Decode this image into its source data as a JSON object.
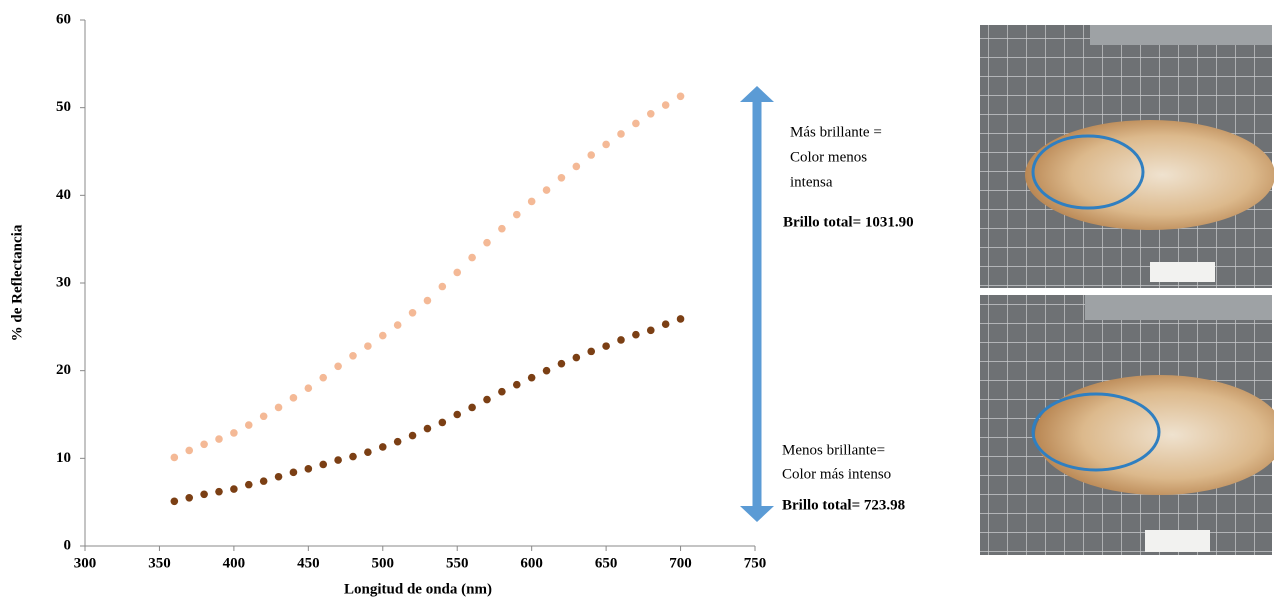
{
  "chart_data": {
    "type": "scatter",
    "x_label": "Longitud de onda (nm)",
    "y_label": "% de Reflectancia",
    "x": [
      360,
      370,
      380,
      390,
      400,
      410,
      420,
      430,
      440,
      450,
      460,
      470,
      480,
      490,
      500,
      510,
      520,
      530,
      540,
      550,
      560,
      570,
      580,
      590,
      600,
      610,
      620,
      630,
      640,
      650,
      660,
      670,
      680,
      690,
      700
    ],
    "series": [
      {
        "color": "#f4b996",
        "values": [
          10.1,
          10.9,
          11.6,
          12.2,
          12.9,
          13.8,
          14.8,
          15.8,
          16.9,
          18.0,
          19.2,
          20.5,
          21.7,
          22.8,
          24.0,
          25.2,
          26.6,
          28.0,
          29.6,
          31.2,
          32.9,
          34.6,
          36.2,
          37.8,
          39.3,
          40.6,
          42.0,
          43.3,
          44.6,
          45.8,
          47.0,
          48.2,
          49.3,
          50.3,
          51.3
        ]
      },
      {
        "color": "#7b3f14",
        "values": [
          5.1,
          5.5,
          5.9,
          6.2,
          6.5,
          7.0,
          7.4,
          7.9,
          8.4,
          8.8,
          9.3,
          9.8,
          10.2,
          10.7,
          11.3,
          11.9,
          12.6,
          13.4,
          14.1,
          15.0,
          15.8,
          16.7,
          17.6,
          18.4,
          19.2,
          20.0,
          20.8,
          21.5,
          22.2,
          22.8,
          23.5,
          24.1,
          24.6,
          25.3,
          25.9
        ]
      }
    ],
    "xlim": [
      300,
      750
    ],
    "xticks": [
      300,
      350,
      400,
      450,
      500,
      550,
      600,
      650,
      700,
      750
    ],
    "ylim": [
      0,
      60
    ],
    "yticks": [
      0,
      10,
      20,
      30,
      40,
      50,
      60
    ],
    "grid": false,
    "annotations": [
      "Más brillante  =",
      "Color menos",
      "intensa",
      "Brillo total= 1031.90",
      "Menos brillante=",
      "Color más intenso",
      "Brillo total= 723.98"
    ]
  }
}
